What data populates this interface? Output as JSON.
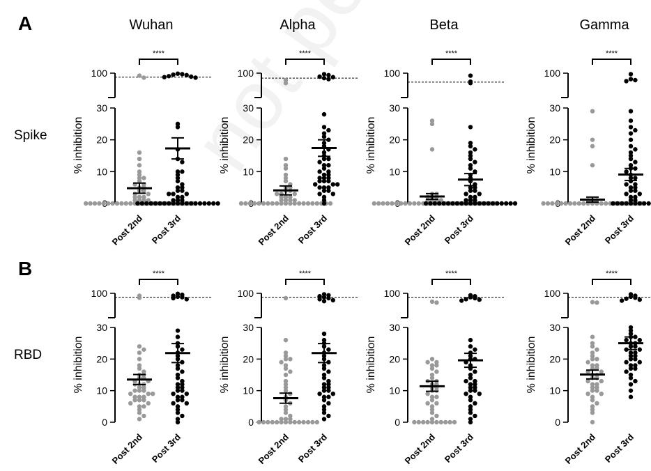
{
  "figure": {
    "panel_labels": [
      "A",
      "B"
    ],
    "row_labels": [
      "Spike",
      "RBD"
    ],
    "column_titles": [
      "Wuhan",
      "Alpha",
      "Beta",
      "Gamma"
    ],
    "watermark": "not peer reviewed",
    "group_colors": {
      "post_2nd": "#999999",
      "post_3rd": "#000000"
    }
  },
  "chart_data": [
    {
      "type": "scatter",
      "row": "Spike",
      "title": "Wuhan",
      "ylabel": "% inhibition",
      "categories": [
        "Post 2nd",
        "Post 3rd"
      ],
      "yticks": [
        0,
        10,
        20,
        30,
        100
      ],
      "ylim": [
        0,
        100
      ],
      "axis_break": [
        30,
        100
      ],
      "threshold": 92,
      "significance": "****",
      "series": [
        {
          "name": "Post 2nd",
          "mean": 4.8,
          "sem": 1.6,
          "values": [
            95,
            91,
            16,
            14,
            12,
            10,
            9,
            8,
            8,
            7,
            6,
            6,
            5,
            5,
            4,
            4,
            3,
            3,
            2,
            2,
            2,
            1,
            1,
            1,
            1,
            0,
            0,
            0,
            0,
            0,
            0,
            0,
            0,
            0,
            0,
            0,
            0,
            0,
            0,
            0,
            0,
            0,
            0,
            0,
            0,
            0,
            0,
            0,
            0,
            0
          ]
        },
        {
          "name": "Post 3rd",
          "mean": 17.3,
          "sem": 3.3,
          "values": [
            99,
            98,
            97,
            96,
            94,
            93,
            92,
            91,
            25,
            24,
            17,
            14,
            13,
            10,
            10,
            9,
            8,
            7,
            6,
            5,
            5,
            4,
            4,
            3,
            3,
            3,
            2,
            2,
            1,
            1,
            1,
            0,
            0,
            0,
            0,
            0,
            0,
            0,
            0,
            0,
            0,
            0,
            0,
            0,
            0,
            0,
            0,
            0,
            0,
            0
          ]
        }
      ]
    },
    {
      "type": "scatter",
      "row": "Spike",
      "title": "Alpha",
      "ylabel": "% inhibition",
      "categories": [
        "Post 2nd",
        "Post 3rd"
      ],
      "yticks": [
        0,
        10,
        20,
        30,
        100
      ],
      "ylim": [
        0,
        100
      ],
      "axis_break": [
        30,
        100
      ],
      "threshold": 90,
      "significance": "****",
      "series": [
        {
          "name": "Post 2nd",
          "mean": 4.1,
          "sem": 1.4,
          "values": [
            86,
            80,
            14,
            12,
            11,
            9,
            8,
            7,
            6,
            5,
            5,
            4,
            4,
            3,
            3,
            3,
            2,
            2,
            2,
            1,
            1,
            1,
            1,
            0,
            0,
            0,
            0,
            0,
            0,
            0,
            0,
            0,
            0,
            0,
            0,
            0,
            0,
            0,
            0,
            0,
            0,
            0,
            0,
            0
          ]
        },
        {
          "name": "Post 3rd",
          "mean": 17.4,
          "sem": 2.6,
          "values": [
            98,
            96,
            93,
            92,
            90,
            88,
            28,
            24,
            23,
            22,
            21,
            20,
            19,
            18,
            17,
            16,
            15,
            14,
            14,
            13,
            12,
            12,
            11,
            10,
            10,
            9,
            9,
            8,
            8,
            8,
            7,
            7,
            7,
            6,
            6,
            6,
            5,
            5,
            5,
            4,
            4,
            3,
            3,
            2,
            1,
            0
          ]
        }
      ]
    },
    {
      "type": "scatter",
      "row": "Spike",
      "title": "Beta",
      "ylabel": "% inhibition",
      "categories": [
        "Post 2nd",
        "Post 3rd"
      ],
      "yticks": [
        0,
        10,
        20,
        30,
        100
      ],
      "ylim": [
        0,
        100
      ],
      "axis_break": [
        30,
        100
      ],
      "threshold": 82,
      "significance": "****",
      "series": [
        {
          "name": "Post 2nd",
          "mean": 2.2,
          "sem": 0.9,
          "values": [
            26,
            25,
            17,
            3,
            3,
            2,
            2,
            2,
            1,
            1,
            1,
            1,
            0,
            0,
            0,
            0,
            0,
            0,
            0,
            0,
            0,
            0,
            0,
            0,
            0,
            0,
            0,
            0,
            0,
            0,
            0,
            0,
            0,
            0,
            0,
            0,
            0,
            0,
            0,
            0
          ]
        },
        {
          "name": "Post 3rd",
          "mean": 7.5,
          "sem": 1.9,
          "values": [
            95,
            83,
            80,
            24,
            19,
            18,
            17,
            16,
            15,
            14,
            13,
            12,
            11,
            10,
            9,
            8,
            7,
            6,
            5,
            5,
            4,
            4,
            3,
            3,
            2,
            2,
            1,
            1,
            1,
            0,
            0,
            0,
            0,
            0,
            0,
            0,
            0,
            0,
            0,
            0,
            0,
            0,
            0,
            0,
            0,
            0,
            0,
            0,
            0,
            0
          ]
        }
      ]
    },
    {
      "type": "scatter",
      "row": "Spike",
      "title": "Gamma",
      "ylabel": "% inhibition",
      "categories": [
        "Post 2nd",
        "Post 3rd"
      ],
      "yticks": [
        0,
        10,
        20,
        30,
        100
      ],
      "ylim": [
        0,
        100
      ],
      "axis_break": [
        30,
        100
      ],
      "threshold": null,
      "significance": "****",
      "series": [
        {
          "name": "Post 2nd",
          "mean": 1.2,
          "sem": 0.8,
          "values": [
            29,
            20,
            18,
            12,
            1,
            1,
            1,
            0,
            0,
            0,
            0,
            0,
            0,
            0,
            0,
            0,
            0,
            0,
            0,
            0,
            0,
            0,
            0,
            0,
            0,
            0,
            0,
            0,
            0,
            0
          ]
        },
        {
          "name": "Post 3rd",
          "mean": 9.1,
          "sem": 1.9,
          "values": [
            98,
            88,
            86,
            84,
            29,
            26,
            24,
            23,
            22,
            20,
            18,
            17,
            16,
            15,
            14,
            13,
            12,
            11,
            11,
            10,
            9,
            8,
            8,
            7,
            6,
            6,
            5,
            5,
            4,
            4,
            3,
            3,
            2,
            2,
            1,
            1,
            0,
            0,
            0,
            0,
            0,
            0,
            0,
            0,
            0,
            0
          ]
        }
      ]
    },
    {
      "type": "scatter",
      "row": "RBD",
      "title": "Wuhan",
      "ylabel": "% inhibition",
      "categories": [
        "Post 2nd",
        "Post 3rd"
      ],
      "yticks": [
        0,
        10,
        20,
        30,
        100
      ],
      "ylim": [
        0,
        100
      ],
      "axis_break": [
        30,
        100
      ],
      "threshold": 92,
      "significance": "****",
      "series": [
        {
          "name": "Post 2nd",
          "mean": 13.5,
          "sem": 1.6,
          "values": [
            95,
            91,
            24,
            23,
            22,
            20,
            18,
            17,
            16,
            15,
            15,
            14,
            14,
            13,
            13,
            12,
            12,
            12,
            11,
            11,
            10,
            10,
            10,
            9,
            9,
            9,
            8,
            8,
            8,
            7,
            7,
            7,
            6,
            6,
            5,
            5,
            4,
            3,
            2,
            1
          ]
        },
        {
          "name": "Post 3rd",
          "mean": 21.9,
          "sem": 3.0,
          "values": [
            99,
            97,
            95,
            93,
            92,
            90,
            88,
            29,
            27,
            25,
            24,
            23,
            22,
            21,
            20,
            19,
            18,
            17,
            16,
            15,
            14,
            13,
            12,
            12,
            11,
            11,
            10,
            10,
            9,
            9,
            8,
            8,
            7,
            7,
            6,
            6,
            5,
            4,
            3,
            2,
            1,
            0
          ]
        }
      ]
    },
    {
      "type": "scatter",
      "row": "RBD",
      "title": "Alpha",
      "ylabel": "% inhibition",
      "categories": [
        "Post 2nd",
        "Post 3rd"
      ],
      "yticks": [
        0,
        10,
        20,
        30,
        100
      ],
      "ylim": [
        0,
        100
      ],
      "axis_break": [
        30,
        100
      ],
      "threshold": 92,
      "significance": "****",
      "series": [
        {
          "name": "Post 2nd",
          "mean": 7.6,
          "sem": 1.6,
          "values": [
            90,
            26,
            22,
            21,
            20,
            20,
            19,
            18,
            17,
            16,
            15,
            13,
            12,
            11,
            10,
            9,
            8,
            7,
            6,
            5,
            4,
            3,
            2,
            1,
            1,
            1,
            0,
            0,
            0,
            0,
            0,
            0,
            0,
            0,
            0,
            0,
            0,
            0,
            0,
            0
          ]
        },
        {
          "name": "Post 3rd",
          "mean": 21.9,
          "sem": 3.0,
          "values": [
            98,
            96,
            94,
            92,
            90,
            88,
            86,
            84,
            28,
            26,
            25,
            24,
            23,
            22,
            21,
            20,
            19,
            18,
            17,
            16,
            15,
            14,
            13,
            12,
            12,
            11,
            11,
            10,
            10,
            9,
            9,
            8,
            8,
            7,
            6,
            5,
            4,
            3,
            2,
            1
          ]
        }
      ]
    },
    {
      "type": "scatter",
      "row": "RBD",
      "title": "Beta",
      "ylabel": "% inhibition",
      "categories": [
        "Post 2nd",
        "Post 3rd"
      ],
      "yticks": [
        0,
        10,
        20,
        30,
        100
      ],
      "ylim": [
        0,
        100
      ],
      "axis_break": [
        30,
        100
      ],
      "threshold": 92,
      "significance": "****",
      "series": [
        {
          "name": "Post 2nd",
          "mean": 11.4,
          "sem": 1.6,
          "values": [
            83,
            81,
            20,
            19,
            19,
            18,
            18,
            17,
            16,
            15,
            14,
            13,
            13,
            12,
            12,
            11,
            11,
            10,
            10,
            9,
            8,
            8,
            7,
            6,
            6,
            5,
            4,
            3,
            2,
            1,
            0,
            0,
            0,
            0,
            0,
            0,
            0,
            0,
            0,
            0
          ]
        },
        {
          "name": "Post 3rd",
          "mean": 19.6,
          "sem": 2.2,
          "values": [
            96,
            94,
            92,
            90,
            88,
            87,
            85,
            26,
            24,
            23,
            22,
            21,
            20,
            20,
            19,
            18,
            17,
            16,
            15,
            14,
            13,
            13,
            12,
            12,
            11,
            11,
            10,
            10,
            9,
            9,
            8,
            7,
            6,
            5,
            4,
            3,
            2,
            1,
            0
          ]
        }
      ]
    },
    {
      "type": "scatter",
      "row": "RBD",
      "title": "Gamma",
      "ylabel": "% inhibition",
      "categories": [
        "Post 2nd",
        "Post 3rd"
      ],
      "yticks": [
        0,
        10,
        20,
        30,
        100
      ],
      "ylim": [
        0,
        100
      ],
      "axis_break": [
        30,
        100
      ],
      "threshold": 92,
      "significance": "****",
      "series": [
        {
          "name": "Post 2nd",
          "mean": 15.1,
          "sem": 1.4,
          "values": [
            82,
            81,
            27,
            25,
            24,
            23,
            22,
            21,
            20,
            20,
            19,
            18,
            18,
            17,
            17,
            16,
            16,
            15,
            15,
            14,
            14,
            13,
            13,
            12,
            12,
            11,
            11,
            10,
            10,
            9,
            9,
            8,
            7,
            6,
            5,
            4,
            3,
            0
          ]
        },
        {
          "name": "Post 3rd",
          "mean": 25.0,
          "sem": 2.0,
          "values": [
            98,
            95,
            93,
            91,
            89,
            87,
            85,
            30,
            29,
            28,
            27,
            27,
            26,
            26,
            25,
            25,
            24,
            24,
            23,
            23,
            22,
            22,
            21,
            21,
            20,
            20,
            19,
            19,
            18,
            18,
            17,
            17,
            16,
            15,
            14,
            13,
            12,
            10,
            8
          ]
        }
      ]
    }
  ]
}
